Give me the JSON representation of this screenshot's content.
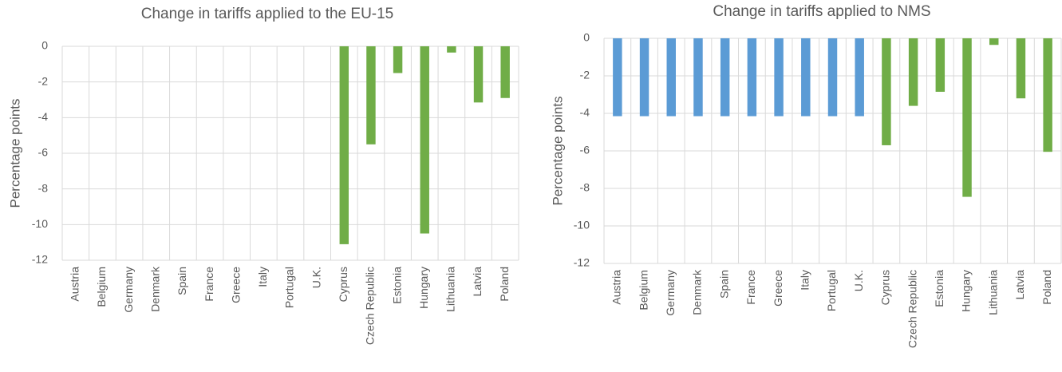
{
  "chart_data": [
    {
      "type": "bar",
      "title": "Change in tariffs applied to the EU-15",
      "y_label": "Percentage points",
      "categories": [
        "Austria",
        "Belgium",
        "Germany",
        "Denmark",
        "Spain",
        "France",
        "Greece",
        "Italy",
        "Portugal",
        "U.K.",
        "Cyprus",
        "Czech Republic",
        "Estonia",
        "Hungary",
        "Lithuania",
        "Latvia",
        "Poland"
      ],
      "values": [
        0,
        0,
        0,
        0,
        0,
        0,
        0,
        0,
        0,
        0,
        -11.1,
        -5.5,
        -1.5,
        -10.5,
        -0.35,
        -3.15,
        -2.9
      ],
      "colors": [
        "#5b9bd5",
        "#5b9bd5",
        "#5b9bd5",
        "#5b9bd5",
        "#5b9bd5",
        "#5b9bd5",
        "#5b9bd5",
        "#5b9bd5",
        "#5b9bd5",
        "#5b9bd5",
        "#70ad47",
        "#70ad47",
        "#70ad47",
        "#70ad47",
        "#70ad47",
        "#70ad47",
        "#70ad47"
      ],
      "ylim": [
        -12,
        0
      ],
      "yticks": [
        0,
        -2,
        -4,
        -6,
        -8,
        -10,
        -12
      ],
      "grid": true
    },
    {
      "type": "bar",
      "title": "Change in tariffs applied to NMS",
      "y_label": "Percentage points",
      "categories": [
        "Austria",
        "Belgium",
        "Germany",
        "Denmark",
        "Spain",
        "France",
        "Greece",
        "Italy",
        "Portugal",
        "U.K.",
        "Cyprus",
        "Czech Republic",
        "Estonia",
        "Hungary",
        "Lithuania",
        "Latvia",
        "Poland"
      ],
      "values": [
        -4.15,
        -4.15,
        -4.15,
        -4.15,
        -4.15,
        -4.15,
        -4.15,
        -4.15,
        -4.15,
        -4.15,
        -5.7,
        -3.6,
        -2.85,
        -8.45,
        -0.35,
        -3.2,
        -6.05
      ],
      "colors": [
        "#5b9bd5",
        "#5b9bd5",
        "#5b9bd5",
        "#5b9bd5",
        "#5b9bd5",
        "#5b9bd5",
        "#5b9bd5",
        "#5b9bd5",
        "#5b9bd5",
        "#5b9bd5",
        "#70ad47",
        "#70ad47",
        "#70ad47",
        "#70ad47",
        "#70ad47",
        "#70ad47",
        "#70ad47"
      ],
      "ylim": [
        -12,
        0
      ],
      "yticks": [
        0,
        -2,
        -4,
        -6,
        -8,
        -10,
        -12
      ],
      "grid": true
    }
  ]
}
